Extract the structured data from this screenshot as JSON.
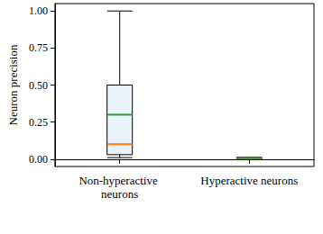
{
  "chart_data": {
    "type": "box",
    "y_label": "Neuron precision",
    "categories": [
      "Non-hyperactive neurons",
      "Hyperactive neurons"
    ],
    "boxes": [
      {
        "low": 0.01,
        "q1": 0.03,
        "median": 0.1,
        "q3": 0.5,
        "high": 1.0
      },
      {
        "low": 0.0,
        "q1": 0.002,
        "median": 0.004,
        "q3": 0.008,
        "high": 0.012
      }
    ],
    "means": [
      0.3,
      0.006
    ],
    "color": "#eaf3fb",
    "ylim": [
      -0.05,
      1.05
    ],
    "yticks": [
      {
        "value": 0,
        "label": "0.00"
      },
      {
        "value": 0.25,
        "label": "0.25"
      },
      {
        "value": 0.5,
        "label": "0.50"
      },
      {
        "value": 0.75,
        "label": "0.75"
      },
      {
        "value": 1,
        "label": "1.00"
      }
    ],
    "grid": false
  }
}
